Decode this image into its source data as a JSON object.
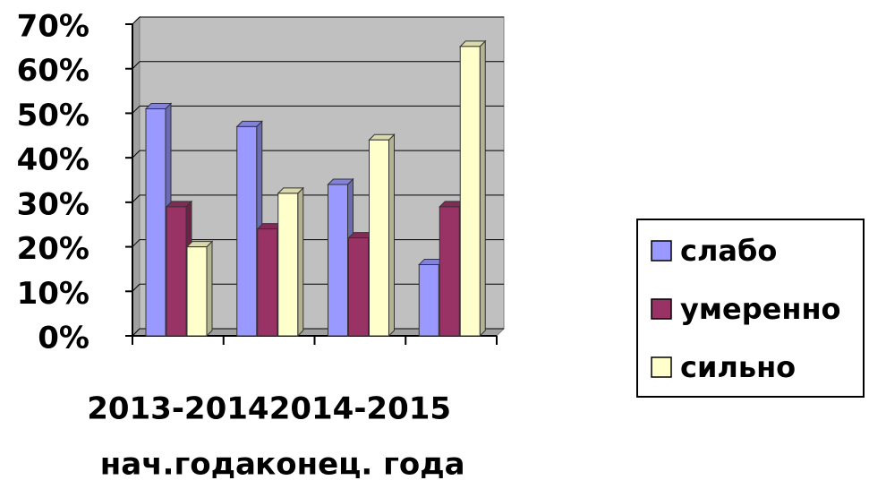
{
  "chart_data": {
    "type": "bar",
    "categories": [
      [
        "2013-2014",
        "нач.года"
      ],
      null,
      [
        "2014-2015",
        "конец. года"
      ],
      null
    ],
    "series": [
      {
        "name": "слабо",
        "color": "#9999ff",
        "values": [
          51,
          47,
          34,
          16
        ]
      },
      {
        "name": "умеренно",
        "color": "#993366",
        "values": [
          29,
          24,
          22,
          29
        ]
      },
      {
        "name": "сильно",
        "color": "#ffffcc",
        "values": [
          20,
          32,
          44,
          65
        ]
      }
    ],
    "ylim": [
      0,
      70
    ],
    "yticks": [
      {
        "value": 0,
        "label": "0%"
      },
      {
        "value": 10,
        "label": "10%"
      },
      {
        "value": 20,
        "label": "20%"
      },
      {
        "value": 30,
        "label": "30%"
      },
      {
        "value": 40,
        "label": "40%"
      },
      {
        "value": 50,
        "label": "50%"
      },
      {
        "value": 60,
        "label": "60%"
      },
      {
        "value": 70,
        "label": "70%"
      }
    ],
    "grid": true,
    "legend": "right"
  }
}
